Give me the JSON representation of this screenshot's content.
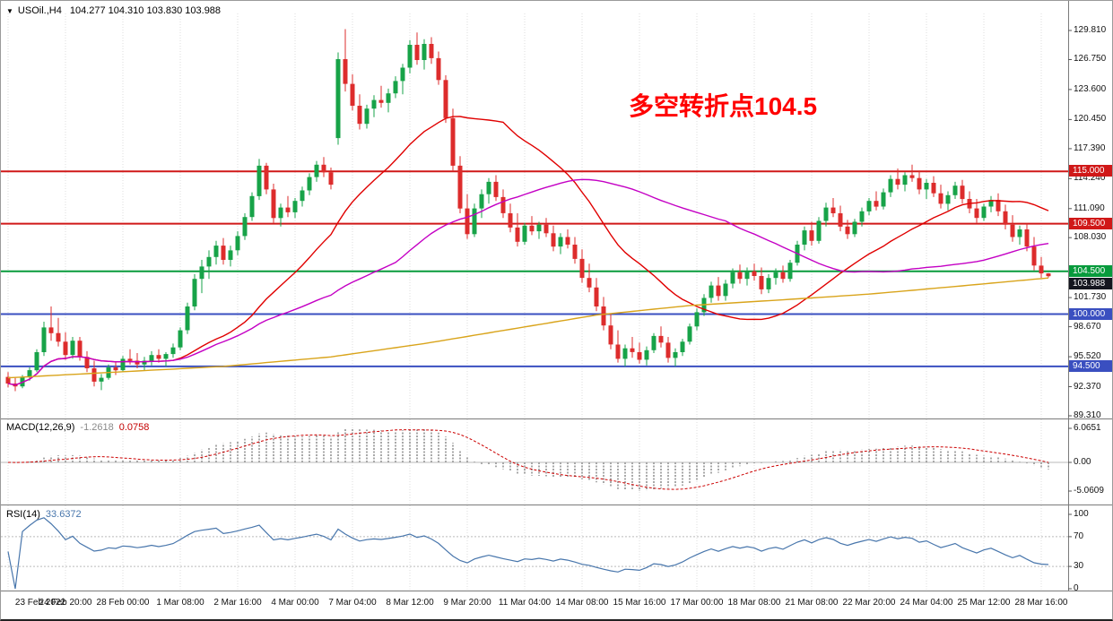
{
  "chart_data": {
    "type": "candlestick",
    "icons": {
      "one_click_trading": "▼"
    },
    "info_line": {
      "symbol_timeframe": "USOil.,H4",
      "ohlc": "104.277 104.310 103.830 103.988"
    },
    "annotation": {
      "text": "多空转折点104.5",
      "color": "#ff0000"
    },
    "x_labels": [
      "23 Feb 2022",
      "24 Feb 20:00",
      "28 Feb 00:00",
      "1 Mar 08:00",
      "2 Mar 16:00",
      "4 Mar 00:00",
      "7 Mar 04:00",
      "8 Mar 12:00",
      "9 Mar 20:00",
      "11 Mar 04:00",
      "14 Mar 08:00",
      "15 Mar 16:00",
      "17 Mar 00:00",
      "18 Mar 08:00",
      "21 Mar 08:00",
      "22 Mar 20:00",
      "24 Mar 04:00",
      "25 Mar 12:00",
      "28 Mar 16:00"
    ],
    "price_scale_labels": [
      "129.810",
      "126.750",
      "123.600",
      "120.450",
      "117.390",
      "114.240",
      "111.090",
      "108.030",
      "101.730",
      "98.670",
      "95.520",
      "92.370",
      "89.310"
    ],
    "price_lines": [
      {
        "price": 115.0,
        "label": "115.000",
        "color": "#d01818"
      },
      {
        "price": 109.5,
        "label": "109.500",
        "color": "#d01818"
      },
      {
        "price": 104.5,
        "label": "104.500",
        "color": "#089b3c"
      },
      {
        "price": 100.0,
        "label": "100.000",
        "color": "#3a4fc0"
      },
      {
        "price": 94.5,
        "label": "94.500",
        "color": "#3a4fc0"
      }
    ],
    "current_price": {
      "label": "103.988",
      "value": 103.988,
      "badge_color": "#14161f"
    },
    "colors": {
      "up": "#17a348",
      "down": "#dd2c2c",
      "grid": "#dcdcdc",
      "ma_fast": "#e00000",
      "ma_mid": "#c400c4",
      "ma_slow": "#d9a41b",
      "macd_hist": "#a8a8a8",
      "macd_signal": "#cc0000",
      "rsi_line": "#4876ac"
    },
    "moving_averages": {
      "fast_period": 24,
      "mid_period": 55,
      "slow_points": [
        [
          0,
          93.3
        ],
        [
          15,
          93.9
        ],
        [
          30,
          94.5
        ],
        [
          45,
          95.5
        ],
        [
          58,
          96.9
        ],
        [
          70,
          98.4
        ],
        [
          82,
          99.9
        ],
        [
          95,
          100.9
        ],
        [
          108,
          101.5
        ],
        [
          120,
          102.1
        ],
        [
          132,
          102.9
        ],
        [
          145,
          103.8
        ]
      ]
    },
    "macd_panel": {
      "label": "MACD(12,26,9)",
      "value_main": "-1.2618",
      "value_signal": "0.0758",
      "scale_labels": [
        "6.0651",
        "0.00",
        "-5.0609"
      ]
    },
    "rsi_panel": {
      "label": "RSI(14)",
      "value": "33.6372",
      "scale_labels": [
        "100",
        "70",
        "30",
        "0"
      ],
      "levels": [
        70,
        30
      ]
    },
    "candles": [
      [
        93.4,
        93.9,
        92.3,
        92.7
      ],
      [
        92.7,
        93.3,
        91.9,
        92.4
      ],
      [
        92.4,
        93.6,
        92.2,
        93.4
      ],
      [
        93.4,
        94.4,
        93.0,
        94.1
      ],
      [
        94.1,
        96.3,
        93.9,
        96.0
      ],
      [
        96.0,
        99.2,
        95.6,
        98.6
      ],
      [
        98.6,
        100.8,
        97.2,
        98.0
      ],
      [
        98.0,
        99.6,
        96.6,
        97.1
      ],
      [
        97.1,
        98.1,
        95.2,
        95.7
      ],
      [
        95.7,
        97.6,
        95.3,
        97.2
      ],
      [
        97.2,
        97.6,
        95.1,
        95.5
      ],
      [
        95.5,
        96.1,
        93.9,
        94.3
      ],
      [
        94.3,
        95.1,
        92.4,
        92.9
      ],
      [
        92.9,
        93.7,
        92.0,
        93.3
      ],
      [
        93.3,
        94.7,
        93.1,
        94.4
      ],
      [
        94.4,
        95.0,
        93.6,
        94.1
      ],
      [
        94.1,
        95.6,
        93.9,
        95.3
      ],
      [
        95.3,
        96.3,
        94.7,
        95.1
      ],
      [
        95.1,
        95.9,
        94.3,
        94.7
      ],
      [
        94.7,
        95.5,
        94.1,
        95.1
      ],
      [
        95.1,
        96.1,
        94.6,
        95.7
      ],
      [
        95.7,
        96.3,
        94.9,
        95.3
      ],
      [
        95.3,
        96.0,
        94.5,
        95.8
      ],
      [
        95.8,
        96.9,
        95.4,
        96.5
      ],
      [
        96.5,
        98.6,
        96.2,
        98.3
      ],
      [
        98.3,
        101.2,
        97.9,
        100.8
      ],
      [
        100.8,
        104.2,
        100.4,
        103.7
      ],
      [
        103.7,
        105.7,
        102.2,
        105.0
      ],
      [
        105.0,
        106.7,
        103.7,
        106.0
      ],
      [
        106.0,
        107.7,
        105.2,
        107.2
      ],
      [
        107.2,
        108.0,
        105.2,
        105.7
      ],
      [
        105.7,
        107.2,
        105.0,
        106.7
      ],
      [
        106.7,
        108.7,
        106.2,
        108.2
      ],
      [
        108.2,
        110.6,
        107.8,
        110.2
      ],
      [
        110.2,
        112.8,
        109.8,
        112.4
      ],
      [
        112.4,
        116.3,
        112.0,
        115.6
      ],
      [
        115.6,
        115.9,
        112.6,
        113.1
      ],
      [
        113.1,
        113.7,
        109.6,
        110.1
      ],
      [
        110.1,
        111.6,
        109.2,
        111.2
      ],
      [
        111.2,
        112.4,
        110.2,
        110.7
      ],
      [
        110.7,
        112.2,
        110.1,
        111.9
      ],
      [
        111.9,
        113.4,
        111.3,
        113.0
      ],
      [
        113.0,
        114.8,
        112.5,
        114.4
      ],
      [
        114.4,
        116.1,
        113.9,
        115.7
      ],
      [
        115.7,
        116.5,
        114.4,
        114.9
      ],
      [
        114.9,
        115.4,
        113.1,
        113.6
      ],
      [
        118.5,
        127.5,
        117.8,
        126.8
      ],
      [
        126.8,
        129.95,
        123.4,
        124.2
      ],
      [
        124.2,
        125.2,
        121.4,
        121.9
      ],
      [
        121.9,
        123.1,
        119.4,
        120.0
      ],
      [
        120.0,
        122.0,
        119.5,
        121.6
      ],
      [
        121.6,
        123.0,
        120.7,
        122.5
      ],
      [
        122.5,
        124.0,
        121.7,
        122.2
      ],
      [
        122.2,
        123.7,
        121.2,
        123.2
      ],
      [
        123.2,
        125.0,
        122.7,
        124.5
      ],
      [
        124.5,
        126.3,
        123.1,
        125.9
      ],
      [
        125.9,
        128.8,
        125.3,
        128.3
      ],
      [
        128.3,
        129.6,
        126.2,
        126.7
      ],
      [
        126.7,
        128.9,
        125.7,
        128.4
      ],
      [
        128.4,
        129.1,
        126.3,
        126.9
      ],
      [
        126.9,
        127.6,
        124.1,
        124.6
      ],
      [
        124.6,
        125.1,
        120.1,
        120.6
      ],
      [
        120.6,
        121.6,
        115.1,
        115.6
      ],
      [
        115.6,
        116.6,
        110.6,
        111.1
      ],
      [
        111.1,
        112.6,
        107.9,
        108.4
      ],
      [
        108.4,
        111.6,
        108.1,
        111.1
      ],
      [
        111.1,
        113.1,
        110.1,
        112.6
      ],
      [
        112.6,
        114.3,
        111.6,
        113.9
      ],
      [
        113.9,
        114.6,
        111.9,
        112.3
      ],
      [
        112.3,
        113.1,
        110.1,
        110.6
      ],
      [
        110.6,
        111.6,
        108.6,
        109.1
      ],
      [
        109.1,
        110.6,
        107.1,
        107.6
      ],
      [
        107.6,
        109.6,
        107.3,
        109.3
      ],
      [
        109.3,
        110.3,
        108.3,
        108.7
      ],
      [
        108.7,
        109.7,
        107.9,
        109.4
      ],
      [
        109.4,
        110.1,
        108.1,
        108.5
      ],
      [
        108.5,
        109.3,
        106.6,
        107.1
      ],
      [
        107.1,
        108.5,
        106.3,
        108.1
      ],
      [
        108.1,
        108.9,
        106.9,
        107.3
      ],
      [
        107.3,
        108.1,
        105.3,
        105.8
      ],
      [
        105.8,
        106.8,
        103.3,
        103.8
      ],
      [
        103.8,
        105.3,
        102.3,
        102.8
      ],
      [
        102.8,
        103.8,
        100.3,
        100.8
      ],
      [
        100.8,
        101.8,
        98.3,
        98.8
      ],
      [
        98.8,
        100.0,
        96.3,
        96.8
      ],
      [
        96.8,
        98.3,
        94.9,
        95.3
      ],
      [
        95.3,
        96.8,
        94.5,
        96.4
      ],
      [
        96.4,
        97.6,
        95.4,
        96.0
      ],
      [
        96.0,
        97.0,
        94.8,
        95.2
      ],
      [
        95.2,
        96.6,
        94.6,
        96.2
      ],
      [
        96.2,
        98.0,
        95.9,
        97.7
      ],
      [
        97.7,
        98.7,
        96.5,
        97.0
      ],
      [
        97.0,
        97.6,
        94.9,
        95.4
      ],
      [
        95.4,
        96.4,
        94.5,
        96.0
      ],
      [
        96.0,
        97.4,
        95.6,
        97.1
      ],
      [
        97.1,
        99.0,
        96.8,
        98.7
      ],
      [
        98.7,
        100.6,
        98.3,
        100.2
      ],
      [
        100.2,
        102.1,
        99.8,
        101.7
      ],
      [
        101.7,
        103.4,
        101.2,
        103.0
      ],
      [
        103.0,
        103.9,
        101.4,
        101.9
      ],
      [
        101.9,
        103.6,
        101.4,
        103.2
      ],
      [
        103.2,
        104.8,
        102.7,
        104.4
      ],
      [
        104.4,
        105.2,
        103.2,
        103.7
      ],
      [
        103.7,
        104.9,
        103.0,
        104.5
      ],
      [
        104.5,
        105.3,
        103.5,
        104.0
      ],
      [
        104.0,
        104.9,
        102.1,
        102.6
      ],
      [
        102.6,
        104.2,
        102.2,
        103.8
      ],
      [
        103.8,
        104.8,
        103.1,
        104.4
      ],
      [
        104.4,
        105.1,
        103.3,
        103.7
      ],
      [
        103.7,
        105.7,
        103.4,
        105.4
      ],
      [
        105.4,
        107.7,
        105.1,
        107.3
      ],
      [
        107.3,
        109.2,
        106.7,
        108.8
      ],
      [
        108.8,
        109.7,
        107.2,
        107.7
      ],
      [
        107.7,
        110.2,
        107.4,
        109.8
      ],
      [
        109.8,
        111.7,
        109.2,
        111.2
      ],
      [
        111.2,
        112.2,
        110.2,
        110.6
      ],
      [
        110.6,
        111.4,
        108.7,
        109.2
      ],
      [
        109.2,
        109.9,
        107.9,
        108.4
      ],
      [
        108.4,
        110.0,
        108.1,
        109.7
      ],
      [
        109.7,
        111.2,
        109.2,
        110.8
      ],
      [
        110.8,
        112.2,
        110.4,
        111.9
      ],
      [
        111.9,
        112.9,
        110.9,
        111.3
      ],
      [
        111.3,
        113.2,
        111.0,
        112.8
      ],
      [
        112.8,
        114.6,
        112.3,
        114.2
      ],
      [
        114.2,
        115.3,
        113.1,
        113.6
      ],
      [
        113.6,
        114.9,
        112.9,
        114.6
      ],
      [
        114.6,
        115.7,
        113.9,
        114.3
      ],
      [
        114.3,
        115.1,
        112.6,
        113.1
      ],
      [
        113.1,
        114.2,
        112.1,
        113.8
      ],
      [
        113.8,
        114.5,
        112.3,
        112.7
      ],
      [
        112.7,
        113.6,
        111.1,
        111.6
      ],
      [
        111.6,
        112.9,
        110.9,
        112.5
      ],
      [
        112.5,
        113.9,
        112.1,
        113.5
      ],
      [
        113.5,
        114.1,
        111.6,
        112.1
      ],
      [
        112.1,
        112.9,
        110.6,
        111.1
      ],
      [
        111.1,
        112.1,
        109.6,
        110.1
      ],
      [
        110.1,
        111.6,
        109.8,
        111.3
      ],
      [
        111.3,
        112.4,
        110.7,
        112.0
      ],
      [
        112.0,
        112.7,
        110.3,
        110.8
      ],
      [
        110.8,
        111.5,
        108.9,
        109.4
      ],
      [
        109.4,
        110.4,
        107.6,
        108.1
      ],
      [
        108.1,
        109.3,
        107.3,
        108.9
      ],
      [
        108.9,
        109.5,
        106.6,
        107.1
      ],
      [
        107.1,
        108.1,
        104.6,
        105.1
      ],
      [
        105.1,
        106.0,
        103.8,
        104.277
      ],
      [
        104.277,
        104.31,
        103.83,
        103.988
      ]
    ]
  }
}
